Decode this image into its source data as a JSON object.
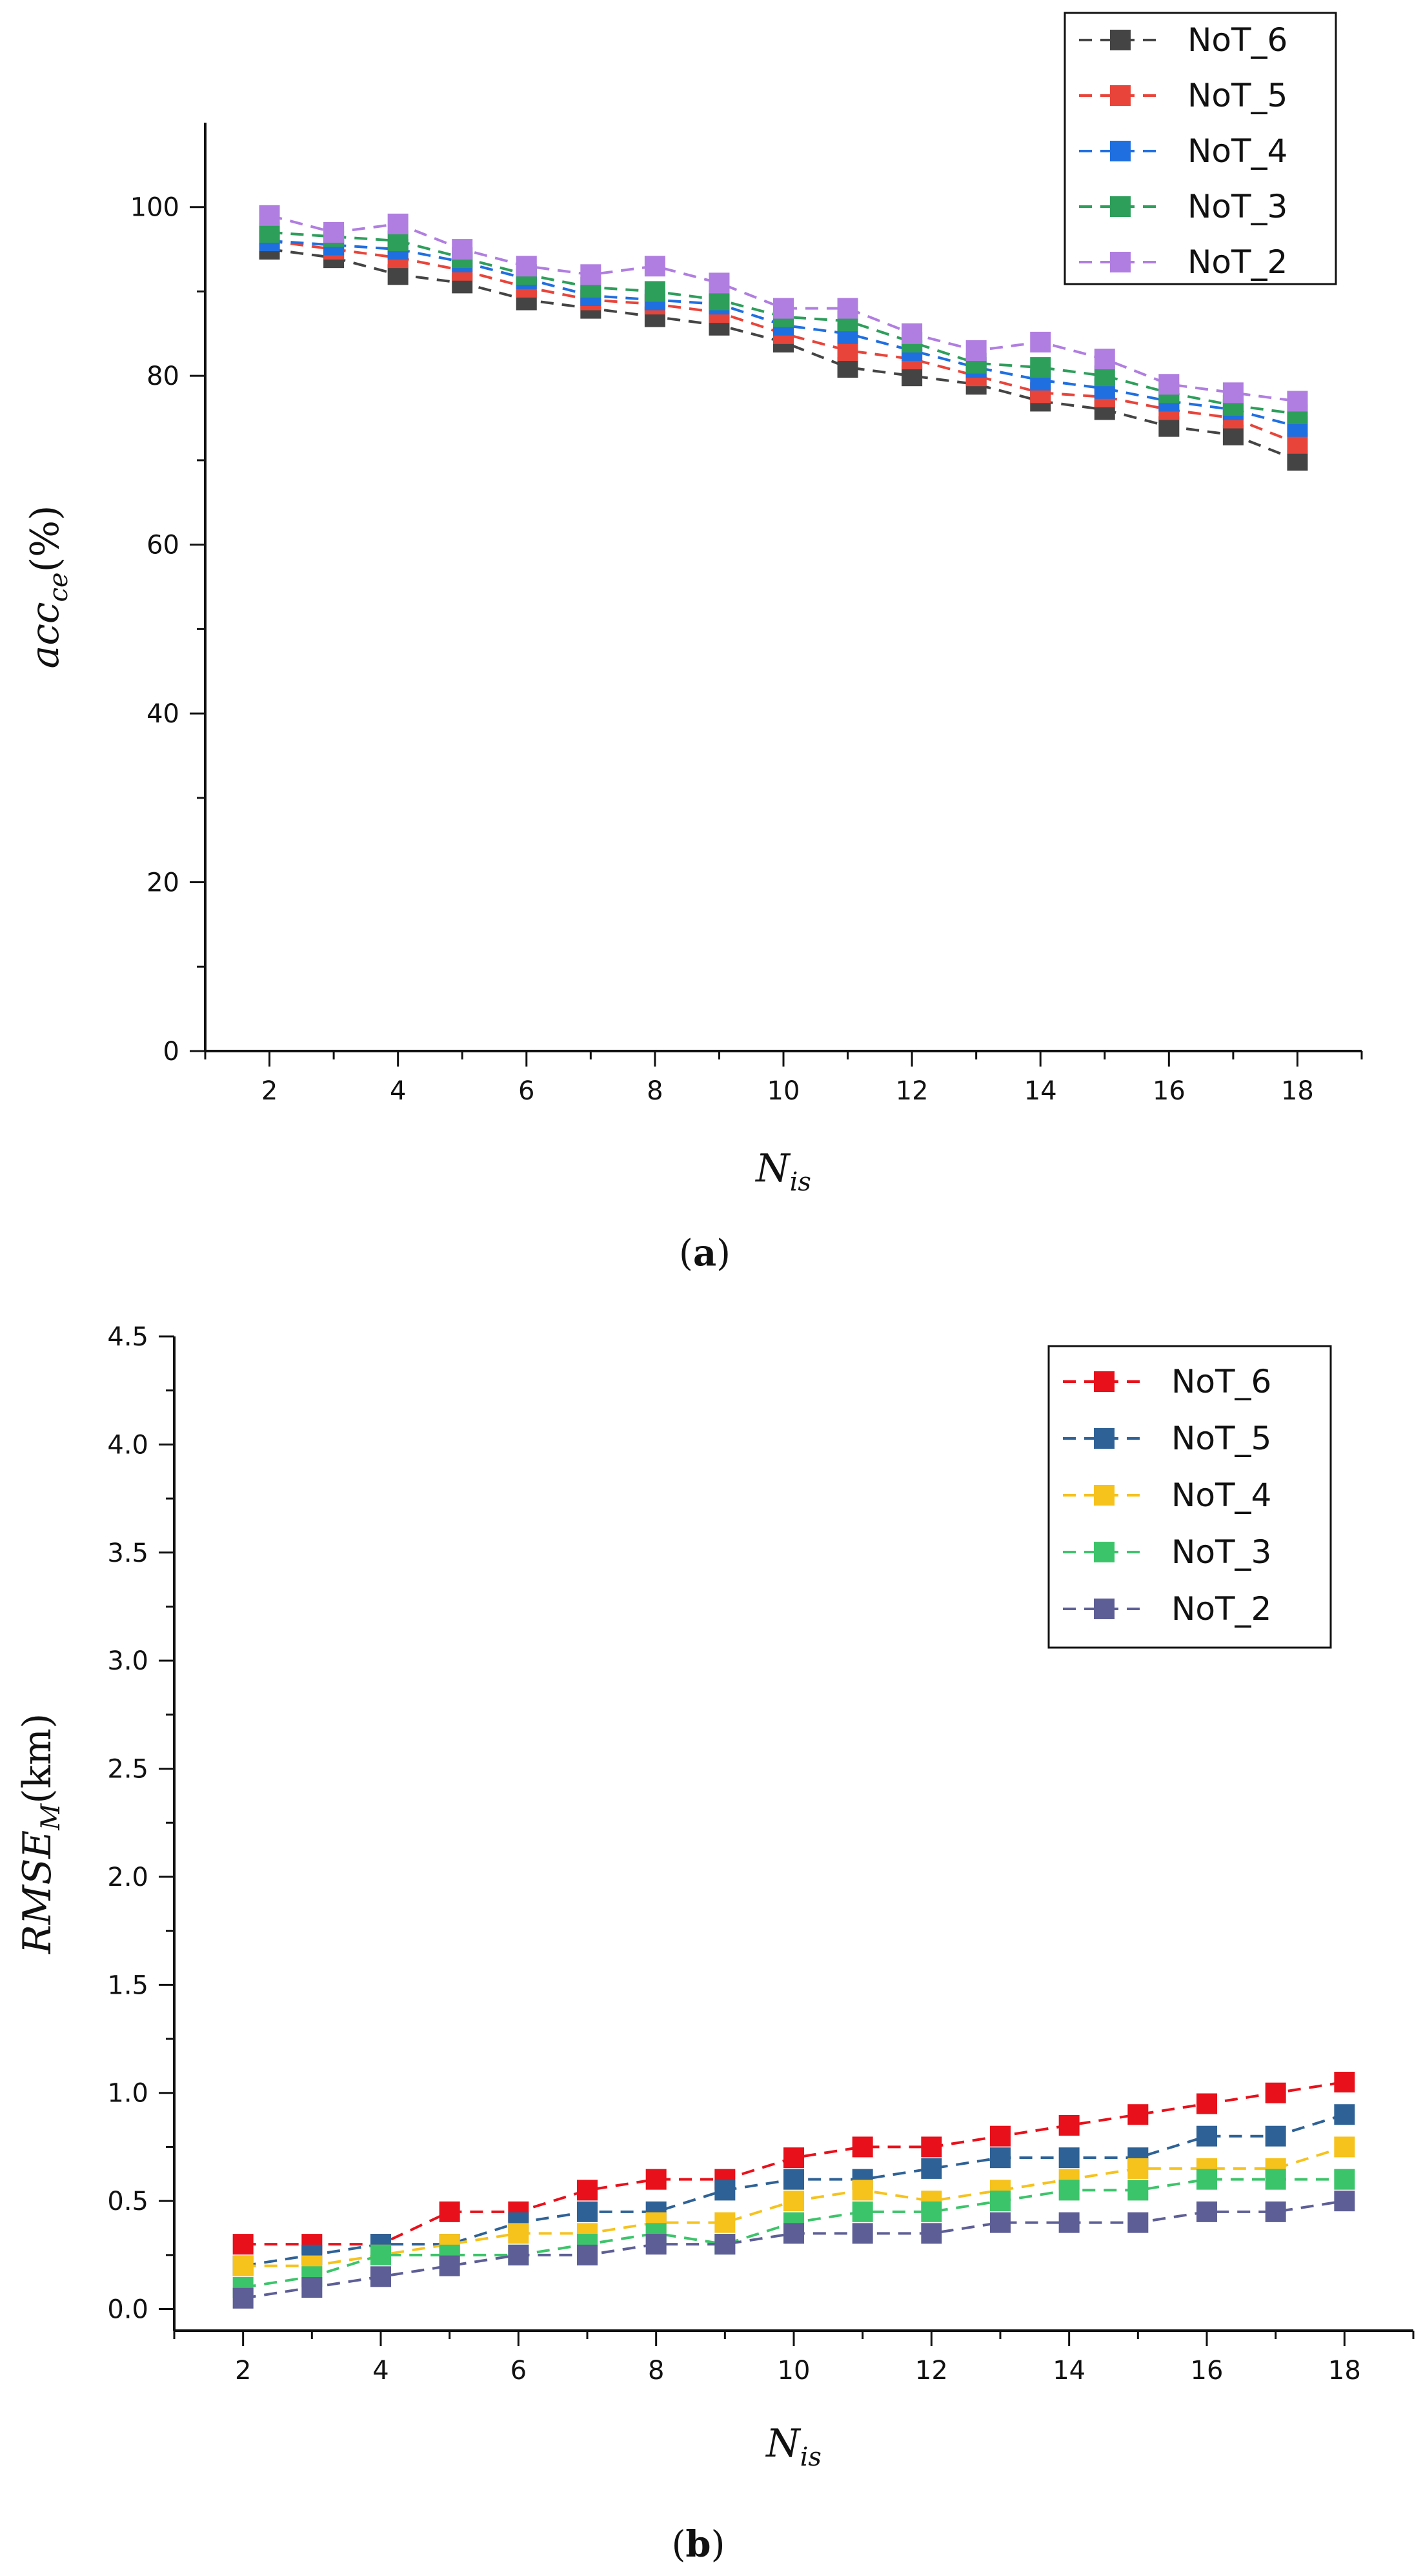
{
  "figure": {
    "panel_a_label": {
      "open": "(",
      "letter": "a",
      "close": ")"
    },
    "panel_b_label": {
      "open": "(",
      "letter": "b",
      "close": ")"
    }
  },
  "chart_data": [
    {
      "type": "line",
      "panel": "a",
      "title": "",
      "xlabel": {
        "main": "N",
        "sub": "is"
      },
      "ylabel": {
        "main": "acc",
        "sub": "ce",
        "unit": "(%)"
      },
      "xlim": [
        1,
        19
      ],
      "ylim": [
        0,
        110
      ],
      "xticks": [
        2,
        4,
        6,
        8,
        10,
        12,
        14,
        16,
        18
      ],
      "yticks": [
        0,
        20,
        40,
        60,
        80,
        100
      ],
      "grid": false,
      "legend_position": "top-right",
      "marker": "square",
      "line_style": "dashed",
      "x": [
        2,
        3,
        4,
        5,
        6,
        7,
        8,
        9,
        10,
        11,
        12,
        13,
        14,
        15,
        16,
        17,
        18
      ],
      "series": [
        {
          "name": "NoT_6",
          "color": "#444444",
          "values": [
            95,
            94,
            92,
            91,
            89,
            88,
            87,
            86,
            84,
            81,
            80,
            79,
            77,
            76,
            74,
            73,
            70
          ]
        },
        {
          "name": "NoT_5",
          "color": "#e8443a",
          "values": [
            96,
            95,
            94,
            92.5,
            90.5,
            89,
            88.5,
            87.5,
            85,
            83,
            82,
            80,
            78,
            77.5,
            76,
            75,
            72
          ]
        },
        {
          "name": "NoT_4",
          "color": "#1f6fe0",
          "values": [
            96,
            95.5,
            95,
            93.5,
            91.5,
            89.5,
            89,
            88.5,
            86,
            85,
            83,
            81,
            79.5,
            78.5,
            77,
            76,
            74
          ]
        },
        {
          "name": "NoT_3",
          "color": "#2e9e5b",
          "values": [
            97,
            96.5,
            96,
            94,
            92,
            90.5,
            90,
            89,
            87,
            86.5,
            84,
            81.5,
            81,
            80,
            78,
            76.5,
            75.5
          ]
        },
        {
          "name": "NoT_2",
          "color": "#b07ee0",
          "values": [
            99,
            97,
            98,
            95,
            93,
            92,
            93,
            91,
            88,
            88,
            85,
            83,
            84,
            82,
            79,
            78,
            77
          ]
        }
      ]
    },
    {
      "type": "line",
      "panel": "b",
      "title": "",
      "xlabel": {
        "main": "N",
        "sub": "is"
      },
      "ylabel": {
        "main": "RMSE",
        "sub": "M",
        "unit": "(km)"
      },
      "xlim": [
        1,
        19
      ],
      "ylim": [
        -0.1,
        4.5
      ],
      "xticks": [
        2,
        4,
        6,
        8,
        10,
        12,
        14,
        16,
        18
      ],
      "yticks": [
        0.0,
        0.5,
        1.0,
        1.5,
        2.0,
        2.5,
        3.0,
        3.5,
        4.0,
        4.5
      ],
      "ytick_labels": [
        "0.0",
        "0.5",
        "1.0",
        "1.5",
        "2.0",
        "2.5",
        "3.0",
        "3.5",
        "4.0",
        "4.5"
      ],
      "grid": false,
      "legend_position": "top-right",
      "marker": "square",
      "line_style": "dashed",
      "x": [
        2,
        3,
        4,
        5,
        6,
        7,
        8,
        9,
        10,
        11,
        12,
        13,
        14,
        15,
        16,
        17,
        18
      ],
      "series": [
        {
          "name": "NoT_6",
          "color": "#e8101a",
          "values": [
            0.3,
            0.3,
            0.3,
            0.45,
            0.45,
            0.55,
            0.6,
            0.6,
            0.7,
            0.75,
            0.75,
            0.8,
            0.85,
            0.9,
            0.95,
            1.0,
            1.05
          ]
        },
        {
          "name": "NoT_5",
          "color": "#2e6296",
          "values": [
            0.2,
            0.25,
            0.3,
            0.3,
            0.4,
            0.45,
            0.45,
            0.55,
            0.6,
            0.6,
            0.65,
            0.7,
            0.7,
            0.7,
            0.8,
            0.8,
            0.9
          ]
        },
        {
          "name": "NoT_4",
          "color": "#f6c21c",
          "values": [
            0.2,
            0.2,
            0.25,
            0.3,
            0.35,
            0.35,
            0.4,
            0.4,
            0.5,
            0.55,
            0.5,
            0.55,
            0.6,
            0.65,
            0.65,
            0.65,
            0.75
          ]
        },
        {
          "name": "NoT_3",
          "color": "#3cc46a",
          "values": [
            0.1,
            0.15,
            0.25,
            0.25,
            0.25,
            0.3,
            0.35,
            0.3,
            0.4,
            0.45,
            0.45,
            0.5,
            0.55,
            0.55,
            0.6,
            0.6,
            0.6
          ]
        },
        {
          "name": "NoT_2",
          "color": "#5e5e96",
          "values": [
            0.05,
            0.1,
            0.15,
            0.2,
            0.25,
            0.25,
            0.3,
            0.3,
            0.35,
            0.35,
            0.35,
            0.4,
            0.4,
            0.4,
            0.45,
            0.45,
            0.5
          ]
        }
      ]
    }
  ]
}
